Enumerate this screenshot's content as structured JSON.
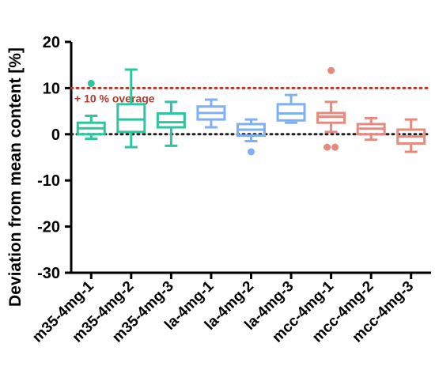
{
  "chart_data": {
    "type": "box",
    "ylabel": "Deviation from mean content [%]",
    "ylim": [
      -30,
      20
    ],
    "yticks": [
      -30,
      -20,
      -10,
      0,
      10,
      20
    ],
    "grid": false,
    "legend": "none",
    "reference_lines": [
      {
        "y": 10,
        "style": "dotted",
        "color": "#b03a2e",
        "label": "+ 10 % overage"
      },
      {
        "y": 0,
        "style": "dotted",
        "color": "#222222",
        "label": ""
      }
    ],
    "categories": [
      "m35-4mg-1",
      "m35-4mg-2",
      "m35-4mg-3",
      "la-4mg-1",
      "la-4mg-2",
      "la-4mg-3",
      "mcc-4mg-1",
      "mcc-4mg-2",
      "mcc-4mg-3"
    ],
    "boxes": [
      {
        "category": "m35-4mg-1",
        "color": "#2ec4a0",
        "whisker_low": -1.0,
        "q1": 0.0,
        "median": 1.3,
        "q3": 2.5,
        "whisker_high": 4.0,
        "outliers": [
          11.0
        ]
      },
      {
        "category": "m35-4mg-2",
        "color": "#2ec4a0",
        "whisker_low": -2.8,
        "q1": 0.5,
        "median": 3.2,
        "q3": 6.5,
        "whisker_high": 14.0,
        "outliers": []
      },
      {
        "category": "m35-4mg-3",
        "color": "#2ec4a0",
        "whisker_low": -2.5,
        "q1": 1.5,
        "median": 2.6,
        "q3": 4.5,
        "whisker_high": 7.0,
        "outliers": []
      },
      {
        "category": "la-4mg-1",
        "color": "#7fb0f5",
        "whisker_low": 1.5,
        "q1": 3.2,
        "median": 4.6,
        "q3": 6.0,
        "whisker_high": 7.5,
        "outliers": []
      },
      {
        "category": "la-4mg-2",
        "color": "#7fb0f5",
        "whisker_low": -1.5,
        "q1": -0.3,
        "median": 1.0,
        "q3": 2.2,
        "whisker_high": 3.2,
        "outliers": [
          -3.8
        ]
      },
      {
        "category": "la-4mg-3",
        "color": "#7fb0f5",
        "whisker_low": 2.5,
        "q1": 3.0,
        "median": 4.5,
        "q3": 6.5,
        "whisker_high": 8.5,
        "outliers": []
      },
      {
        "category": "mcc-4mg-1",
        "color": "#e8897e",
        "whisker_low": 0.5,
        "q1": 2.5,
        "median": 3.8,
        "q3": 4.6,
        "whisker_high": 7.0,
        "outliers": [
          13.8,
          -2.8,
          -2.8
        ]
      },
      {
        "category": "mcc-4mg-2",
        "color": "#e8897e",
        "whisker_low": -1.2,
        "q1": 0.0,
        "median": 1.2,
        "q3": 2.2,
        "whisker_high": 3.5,
        "outliers": []
      },
      {
        "category": "mcc-4mg-3",
        "color": "#e8897e",
        "whisker_low": -3.8,
        "q1": -2.0,
        "median": -0.5,
        "q3": 1.0,
        "whisker_high": 3.2,
        "outliers": []
      }
    ]
  }
}
